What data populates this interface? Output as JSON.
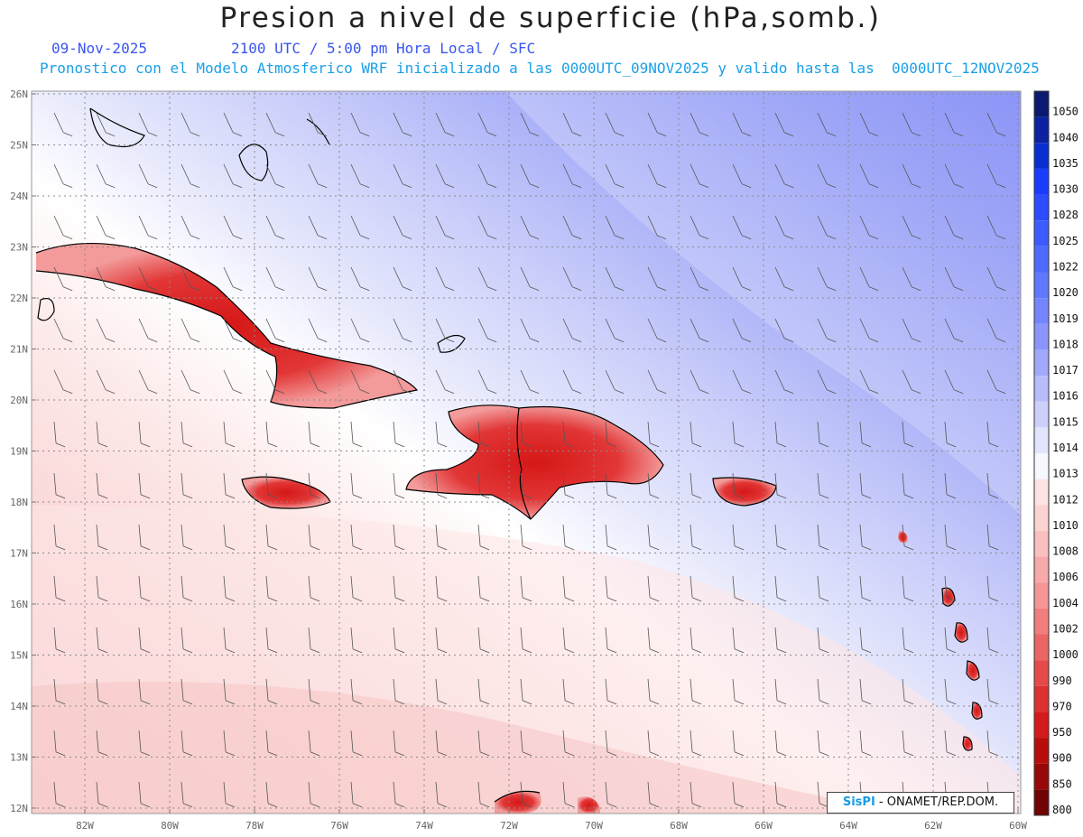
{
  "title": "Presion a nivel de superficie (hPa,somb.)",
  "date": "09-Nov-2025",
  "valid_time": "2100 UTC / 5:00 pm Hora Local / SFC",
  "subtitle": "Pronostico con el Modelo Atmosferico WRF inicializado a las 0000UTC_09NOV2025 y valido hasta las  0000UTC_12NOV2025",
  "credit": {
    "brand": "SisPI",
    "org": " - ONAMET/REP.DOM."
  },
  "lat_labels": [
    "26N",
    "25N",
    "24N",
    "23N",
    "22N",
    "21N",
    "20N",
    "19N",
    "18N",
    "17N",
    "16N",
    "15N",
    "14N",
    "13N",
    "12N"
  ],
  "lon_labels": [
    "82W",
    "80W",
    "78W",
    "76W",
    "74W",
    "72W",
    "70W",
    "68W",
    "66W",
    "64W",
    "62W",
    "60W"
  ],
  "colorbar": {
    "levels": [
      "1050",
      "1040",
      "1035",
      "1030",
      "1028",
      "1025",
      "1022",
      "1020",
      "1019",
      "1018",
      "1017",
      "1016",
      "1015",
      "1014",
      "1013",
      "1012",
      "1010",
      "1008",
      "1006",
      "1004",
      "1002",
      "1000",
      "990",
      "970",
      "950",
      "900",
      "850",
      "800"
    ],
    "colors": [
      "#0b1a70",
      "#0c22a0",
      "#0a2fd0",
      "#1a3cff",
      "#2c4dff",
      "#3d5cff",
      "#4f6bff",
      "#6078ff",
      "#7585ff",
      "#8b95fb",
      "#a0a9fb",
      "#b7bdfb",
      "#ccd0fb",
      "#e3e5fc",
      "#f7f7fe",
      "#fde4e4",
      "#fcd3d3",
      "#fac0c0",
      "#f8aaaa",
      "#f59595",
      "#f07e7e",
      "#eb6565",
      "#e44a4a",
      "#dd3030",
      "#d41a1a",
      "#b80d0d",
      "#980808",
      "#700404"
    ]
  }
}
